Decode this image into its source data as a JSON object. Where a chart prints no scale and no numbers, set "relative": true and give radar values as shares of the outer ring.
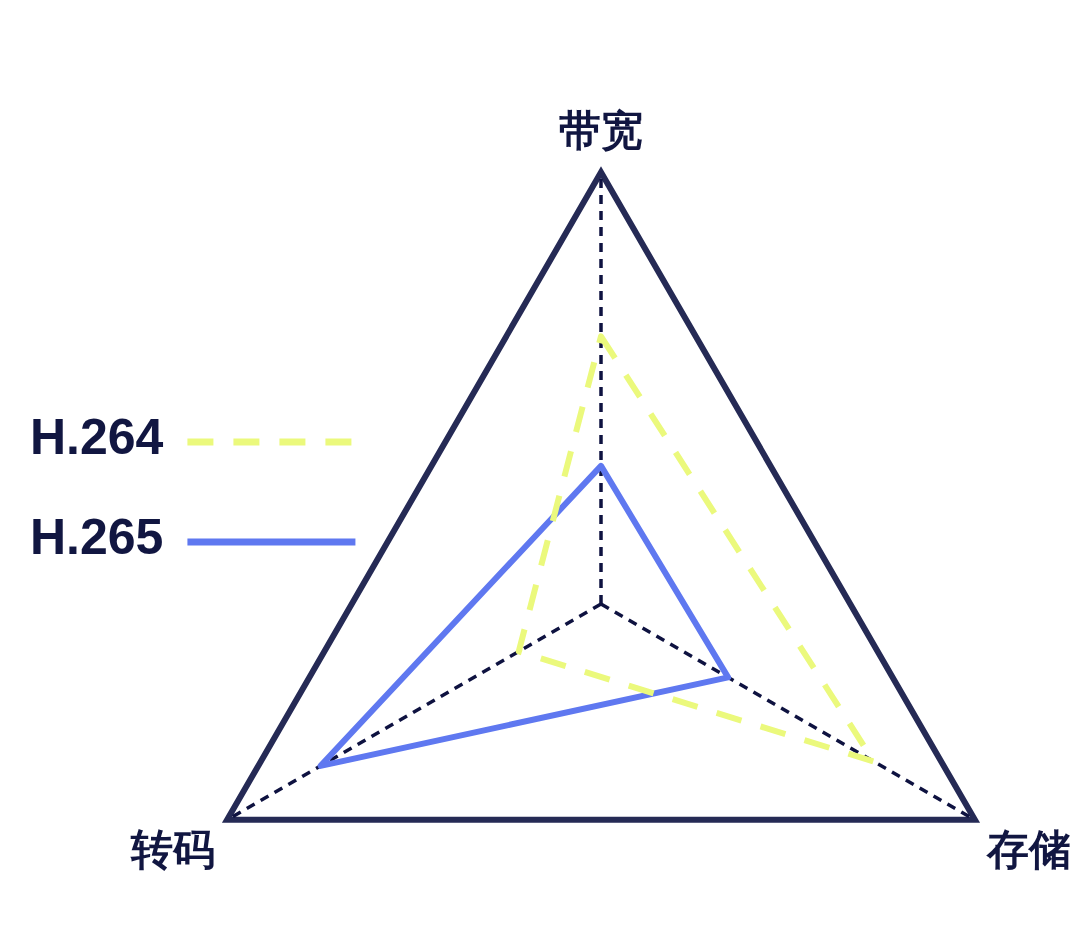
{
  "chart_data": {
    "type": "radar",
    "categories": [
      "带宽",
      "存储",
      "转码"
    ],
    "relative": true,
    "series": [
      {
        "name": "H.264",
        "color": "#ebf97c",
        "values": [
          0.62,
          0.73,
          0.22
        ],
        "line_style": "dashed"
      },
      {
        "name": "H.265",
        "color": "#5f78f0",
        "values": [
          0.32,
          0.34,
          0.75
        ],
        "line_style": "solid"
      }
    ],
    "grid": true,
    "legend": "left",
    "marker": "none"
  }
}
